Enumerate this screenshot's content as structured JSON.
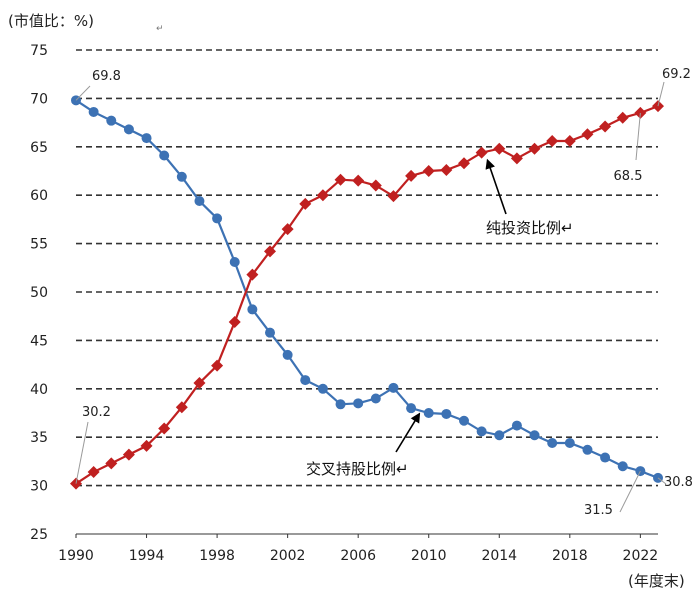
{
  "chart_data": {
    "type": "line",
    "ylabel": "(市值比：%)",
    "xlabel": "(年度末)",
    "ylim": [
      25,
      75
    ],
    "xlim": [
      1990,
      2023
    ],
    "y_ticks": [
      25,
      30,
      35,
      40,
      45,
      50,
      55,
      60,
      65,
      70,
      75
    ],
    "x_ticks": [
      1990,
      1994,
      1998,
      2002,
      2006,
      2010,
      2014,
      2018,
      2022
    ],
    "grid": "horizontal dashed",
    "x": [
      1990,
      1991,
      1992,
      1993,
      1994,
      1995,
      1996,
      1997,
      1998,
      1999,
      2000,
      2001,
      2002,
      2003,
      2004,
      2005,
      2006,
      2007,
      2008,
      2009,
      2010,
      2011,
      2012,
      2013,
      2014,
      2015,
      2016,
      2017,
      2018,
      2019,
      2020,
      2021,
      2022,
      2023
    ],
    "series": [
      {
        "name": "交叉持股比例",
        "color": "#3d72b4",
        "marker": "circle",
        "values": [
          69.8,
          68.6,
          67.7,
          66.8,
          65.9,
          64.1,
          61.9,
          59.4,
          57.6,
          53.1,
          48.2,
          45.8,
          43.5,
          40.9,
          40.0,
          38.4,
          38.5,
          39.0,
          40.1,
          38.0,
          37.5,
          37.4,
          36.7,
          35.6,
          35.2,
          36.2,
          35.2,
          34.4,
          34.4,
          33.7,
          32.9,
          32.0,
          31.5,
          30.8
        ]
      },
      {
        "name": "纯投资比例",
        "color": "#c02020",
        "marker": "diamond",
        "values": [
          30.2,
          31.4,
          32.3,
          33.2,
          34.1,
          35.9,
          38.1,
          40.6,
          42.4,
          46.9,
          51.8,
          54.2,
          56.5,
          59.1,
          60.0,
          61.6,
          61.5,
          61.0,
          59.9,
          62.0,
          62.5,
          62.6,
          63.3,
          64.4,
          64.8,
          63.8,
          64.8,
          65.6,
          65.6,
          66.3,
          67.1,
          68.0,
          68.5,
          69.2
        ]
      }
    ],
    "annotations": [
      {
        "text": "69.8",
        "series": 0,
        "x": 1990
      },
      {
        "text": "30.2",
        "series": 1,
        "x": 1990
      },
      {
        "text": "69.2",
        "series": 1,
        "x": 2023
      },
      {
        "text": "68.5",
        "series": 1,
        "x": 2022
      },
      {
        "text": "30.8",
        "series": 0,
        "x": 2023
      },
      {
        "text": "31.5",
        "series": 0,
        "x": 2022
      }
    ],
    "series_labels": [
      {
        "text": "纯投资比例↵",
        "series": 1,
        "arrow_to_x": 2013
      },
      {
        "text": "交叉持股比例↵",
        "series": 0,
        "arrow_to_x": 2009
      }
    ]
  },
  "paragraph_mark": "↵"
}
